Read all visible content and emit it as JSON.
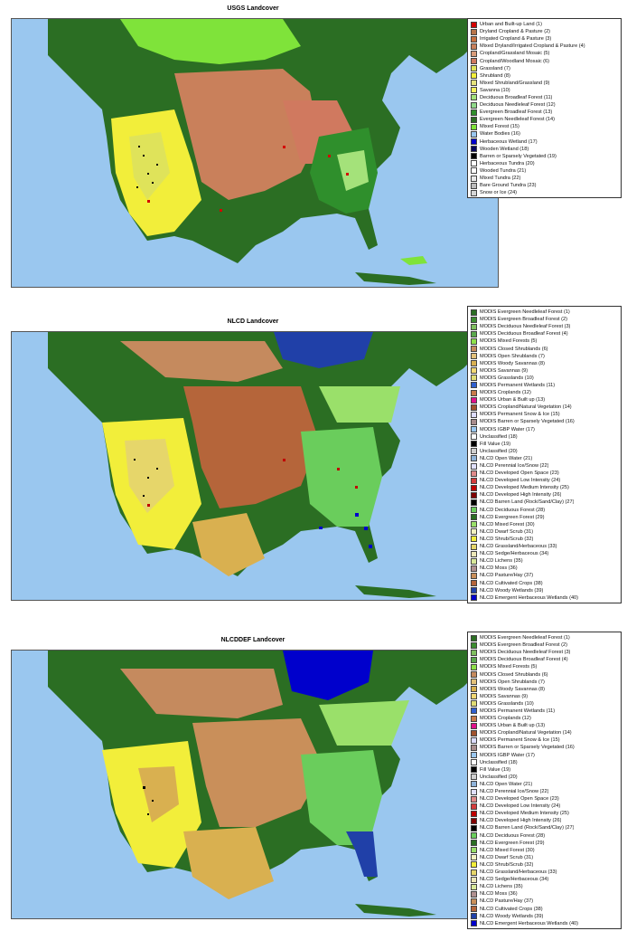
{
  "maps": [
    {
      "title": "USGS Landcover",
      "legend": [
        {
          "label": "Urban and Built-up Land (1)",
          "color": "#d40000"
        },
        {
          "label": "Dryland Cropland & Pasture (2)",
          "color": "#b7744a"
        },
        {
          "label": "Irrigated Cropland & Pasture (3)",
          "color": "#c8703f"
        },
        {
          "label": "Mixed Dryland/Irrigated Cropland & Pasture (4)",
          "color": "#c9805b"
        },
        {
          "label": "Cropland/Grassland Mosaic (5)",
          "color": "#d99c7a"
        },
        {
          "label": "Cropland/Woodland Mosaic (6)",
          "color": "#d0795f"
        },
        {
          "label": "Grassland (7)",
          "color": "#dfe35a"
        },
        {
          "label": "Shrubland (8)",
          "color": "#f2ee3a"
        },
        {
          "label": "Mixed Shrubland/Grassland (9)",
          "color": "#e6e37c"
        },
        {
          "label": "Savanna (10)",
          "color": "#f7f25c"
        },
        {
          "label": "Deciduous Broadleaf Forest (11)",
          "color": "#a4e27a"
        },
        {
          "label": "Deciduous Needleleaf Forest (12)",
          "color": "#90d98a"
        },
        {
          "label": "Evergreen Broadleaf Forest (13)",
          "color": "#2f8f2c"
        },
        {
          "label": "Evergreen Needleleaf Forest (14)",
          "color": "#2b6e23"
        },
        {
          "label": "Mixed Forest (15)",
          "color": "#7fe33a"
        },
        {
          "label": "Water Bodies (16)",
          "color": "#9ac7ef"
        },
        {
          "label": "Herbaceous Wetland (17)",
          "color": "#0000cc"
        },
        {
          "label": "Wooden Wetland (18)",
          "color": "#07075a"
        },
        {
          "label": "Barren or Sparsely Vegetated (19)",
          "color": "#000000"
        },
        {
          "label": "Herbaceous Tundra (20)",
          "color": "#ffffff"
        },
        {
          "label": "Wooded Tundra (21)",
          "color": "#ffffff"
        },
        {
          "label": "Mixed Tundra (22)",
          "color": "#e8e8e8"
        },
        {
          "label": "Bare Ground Tundra (23)",
          "color": "#bdbdbd"
        },
        {
          "label": "Snow or Ice (24)",
          "color": "#d6d6d6"
        }
      ]
    },
    {
      "title": "NLCD Landcover",
      "legend": [
        {
          "label": "MODIS Evergreen Needleleaf Forest (1)",
          "color": "#2b6e23"
        },
        {
          "label": "MODIS Evergreen Broadleaf Forest (2)",
          "color": "#3c8d2f"
        },
        {
          "label": "MODIS Deciduous Needleleaf Forest (3)",
          "color": "#7fbf5f"
        },
        {
          "label": "MODIS Deciduous Broadleaf Forest (4)",
          "color": "#5aa84c"
        },
        {
          "label": "MODIS Mixed Forests (5)",
          "color": "#8ee04a"
        },
        {
          "label": "MODIS Closed Shrublands (6)",
          "color": "#c58a5e"
        },
        {
          "label": "MODIS Open Shrublands (7)",
          "color": "#e3c17a"
        },
        {
          "label": "MODIS Woody Savannas (8)",
          "color": "#d9b050"
        },
        {
          "label": "MODIS Savannas (9)",
          "color": "#f2d874"
        },
        {
          "label": "MODIS Grasslands (10)",
          "color": "#e0dc74"
        },
        {
          "label": "MODIS Permanent Wetlands (11)",
          "color": "#2f5fcf"
        },
        {
          "label": "MODIS Croplands (12)",
          "color": "#c87a4a"
        },
        {
          "label": "MODIS Urban & Built up (13)",
          "color": "#e0108a"
        },
        {
          "label": "MODIS Cropland/Natural Vegetation (14)",
          "color": "#a0522d"
        },
        {
          "label": "MODIS Permanent Snow & Ice (15)",
          "color": "#dcdcff"
        },
        {
          "label": "MODIS Barren or Sparsely Vegetated (16)",
          "color": "#a88c8c"
        },
        {
          "label": "MODIS IGBP Water (17)",
          "color": "#9ac7ef"
        },
        {
          "label": "Unclassified (18)",
          "color": "#ffffff"
        },
        {
          "label": "Fill Value (19)",
          "color": "#000000"
        },
        {
          "label": "Unclassified (20)",
          "color": "#d0d0d0"
        },
        {
          "label": "NLCD Open Water (21)",
          "color": "#8fb3d9"
        },
        {
          "label": "NLCD Perennial Ice/Snow (22)",
          "color": "#e0e0ff"
        },
        {
          "label": "NLCD Developed Open Space (23)",
          "color": "#e08a8a"
        },
        {
          "label": "NLCD Developed Low Intensity (24)",
          "color": "#d43c3c"
        },
        {
          "label": "NLCD Developed Medium Intensity (25)",
          "color": "#c00000"
        },
        {
          "label": "NLCD Developed High Intensity (26)",
          "color": "#800000"
        },
        {
          "label": "NLCD Barren Land (Rock/Sand/Clay) (27)",
          "color": "#000000"
        },
        {
          "label": "NLCD Deciduous Forest (28)",
          "color": "#6acd5c"
        },
        {
          "label": "NLCD Evergreen Forest (29)",
          "color": "#2b6e23"
        },
        {
          "label": "NLCD Mixed Forest (30)",
          "color": "#9ae06a"
        },
        {
          "label": "NLCD Dwarf Scrub (31)",
          "color": "#f2f2c0"
        },
        {
          "label": "NLCD Shrub/Scrub (32)",
          "color": "#f2ee3a"
        },
        {
          "label": "NLCD Grassland/Herbaceous (33)",
          "color": "#e6d66a"
        },
        {
          "label": "NLCD Sedge/Herbaceous (34)",
          "color": "#ede8b8"
        },
        {
          "label": "NLCD Lichens (35)",
          "color": "#d8e89a"
        },
        {
          "label": "NLCD Moss (36)",
          "color": "#b09090"
        },
        {
          "label": "NLCD Pasture/Hay (37)",
          "color": "#c98f5a"
        },
        {
          "label": "NLCD Cultivated Crops (38)",
          "color": "#b5653a"
        },
        {
          "label": "NLCD Woody Wetlands (39)",
          "color": "#2040a8"
        },
        {
          "label": "NLCD Emergent Herbaceous Wetlands (40)",
          "color": "#0000cc"
        }
      ]
    },
    {
      "title": "NLCDDEF Landcover",
      "legend": [
        {
          "label": "MODIS Evergreen Needleleaf Forest (1)",
          "color": "#2b6e23"
        },
        {
          "label": "MODIS Evergreen Broadleaf Forest (2)",
          "color": "#3c8d2f"
        },
        {
          "label": "MODIS Deciduous Needleleaf Forest (3)",
          "color": "#7fbf5f"
        },
        {
          "label": "MODIS Deciduous Broadleaf Forest (4)",
          "color": "#5aa84c"
        },
        {
          "label": "MODIS Mixed Forests (5)",
          "color": "#8ee04a"
        },
        {
          "label": "MODIS Closed Shrublands (6)",
          "color": "#c58a5e"
        },
        {
          "label": "MODIS Open Shrublands (7)",
          "color": "#e3c17a"
        },
        {
          "label": "MODIS Woody Savannas (8)",
          "color": "#d9b050"
        },
        {
          "label": "MODIS Savannas (9)",
          "color": "#f2d874"
        },
        {
          "label": "MODIS Grasslands (10)",
          "color": "#e0dc74"
        },
        {
          "label": "MODIS Permanent Wetlands (11)",
          "color": "#2f5fcf"
        },
        {
          "label": "MODIS Croplands (12)",
          "color": "#c87a4a"
        },
        {
          "label": "MODIS Urban & Built up (13)",
          "color": "#e0108a"
        },
        {
          "label": "MODIS Cropland/Natural Vegetation (14)",
          "color": "#a0522d"
        },
        {
          "label": "MODIS Permanent Snow & Ice (15)",
          "color": "#dcdcff"
        },
        {
          "label": "MODIS Barren or Sparsely Vegetated (16)",
          "color": "#a88c8c"
        },
        {
          "label": "MODIS IGBP Water (17)",
          "color": "#9ac7ef"
        },
        {
          "label": "Unclassified (18)",
          "color": "#ffffff"
        },
        {
          "label": "Fill Value (19)",
          "color": "#000000"
        },
        {
          "label": "Unclassified (20)",
          "color": "#d0d0d0"
        },
        {
          "label": "NLCD Open Water (21)",
          "color": "#8fb3d9"
        },
        {
          "label": "NLCD Perennial Ice/Snow (22)",
          "color": "#e0e0ff"
        },
        {
          "label": "NLCD Developed Open Space (23)",
          "color": "#e08a8a"
        },
        {
          "label": "NLCD Developed Low Intensity (24)",
          "color": "#d43c3c"
        },
        {
          "label": "NLCD Developed Medium Intensity (25)",
          "color": "#c00000"
        },
        {
          "label": "NLCD Developed High Intensity (26)",
          "color": "#800000"
        },
        {
          "label": "NLCD Barren Land (Rock/Sand/Clay) (27)",
          "color": "#000000"
        },
        {
          "label": "NLCD Deciduous Forest (28)",
          "color": "#6acd5c"
        },
        {
          "label": "NLCD Evergreen Forest (29)",
          "color": "#2b6e23"
        },
        {
          "label": "NLCD Mixed Forest (30)",
          "color": "#9ae06a"
        },
        {
          "label": "NLCD Dwarf Scrub (31)",
          "color": "#f2f2c0"
        },
        {
          "label": "NLCD Shrub/Scrub (32)",
          "color": "#f2ee3a"
        },
        {
          "label": "NLCD Grassland/Herbaceous (33)",
          "color": "#e6d66a"
        },
        {
          "label": "NLCD Sedge/Herbaceous (34)",
          "color": "#ede8b8"
        },
        {
          "label": "NLCD Lichens (35)",
          "color": "#d8e89a"
        },
        {
          "label": "NLCD Moss (36)",
          "color": "#b09090"
        },
        {
          "label": "NLCD Pasture/Hay (37)",
          "color": "#c98f5a"
        },
        {
          "label": "NLCD Cultivated Crops (38)",
          "color": "#b5653a"
        },
        {
          "label": "NLCD Woody Wetlands (39)",
          "color": "#2040a8"
        },
        {
          "label": "NLCD Emergent Herbaceous Wetlands (40)",
          "color": "#0000cc"
        }
      ]
    }
  ]
}
